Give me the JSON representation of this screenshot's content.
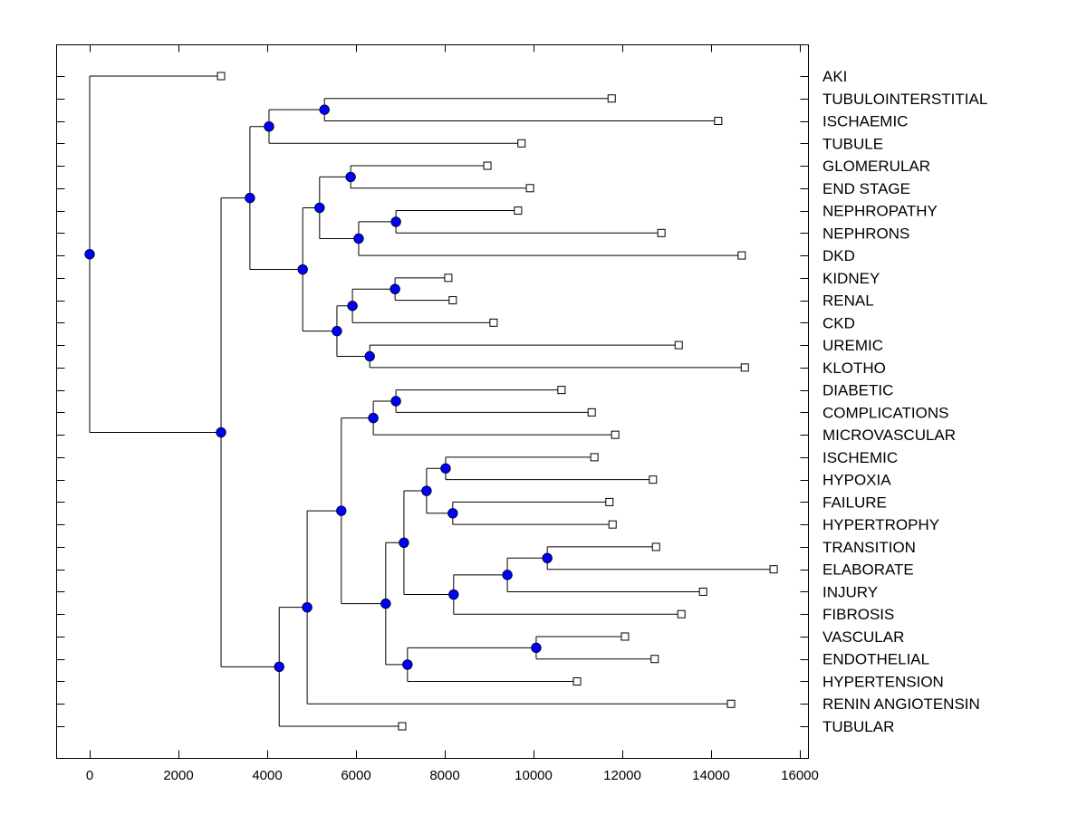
{
  "chart_data": {
    "type": "dendrogram",
    "title": "",
    "xlabel": "",
    "ylabel": "",
    "xlim": [
      -750,
      16200
    ],
    "xticks": [
      0,
      2000,
      4000,
      6000,
      8000,
      10000,
      12000,
      14000,
      16000
    ],
    "xtick_labels": [
      "0",
      "2000",
      "4000",
      "6000",
      "8000",
      "10000",
      "12000",
      "14000",
      "16000"
    ],
    "grid": false,
    "colors": {
      "node_fill": "#0000ff",
      "node_stroke": "#000033",
      "leaf_fill": "#ffffff",
      "line": "#000000"
    },
    "leaves": [
      {
        "label": "AKI",
        "value": 2960
      },
      {
        "label": "TUBULOINTERSTITIAL",
        "value": 11760
      },
      {
        "label": "ISCHAEMIC",
        "value": 14160
      },
      {
        "label": "TUBULE",
        "value": 9730
      },
      {
        "label": "GLOMERULAR",
        "value": 8960
      },
      {
        "label": "END STAGE",
        "value": 9920
      },
      {
        "label": "NEPHROPATHY",
        "value": 9650
      },
      {
        "label": "NEPHRONS",
        "value": 12880
      },
      {
        "label": "DKD",
        "value": 14690
      },
      {
        "label": "KIDNEY",
        "value": 8080
      },
      {
        "label": "RENAL",
        "value": 8180
      },
      {
        "label": "CKD",
        "value": 9100
      },
      {
        "label": "UREMIC",
        "value": 13270
      },
      {
        "label": "KLOTHO",
        "value": 14760
      },
      {
        "label": "DIABETIC",
        "value": 10630
      },
      {
        "label": "COMPLICATIONS",
        "value": 11310
      },
      {
        "label": "MICROVASCULAR",
        "value": 11840
      },
      {
        "label": "ISCHEMIC",
        "value": 11370
      },
      {
        "label": "HYPOXIA",
        "value": 12690
      },
      {
        "label": "FAILURE",
        "value": 11710
      },
      {
        "label": "HYPERTROPHY",
        "value": 11780
      },
      {
        "label": "TRANSITION",
        "value": 12760
      },
      {
        "label": "ELABORATE",
        "value": 15410
      },
      {
        "label": "INJURY",
        "value": 13820
      },
      {
        "label": "FIBROSIS",
        "value": 13330
      },
      {
        "label": "VASCULAR",
        "value": 12060
      },
      {
        "label": "ENDOTHELIAL",
        "value": 12730
      },
      {
        "label": "HYPERTENSION",
        "value": 10980
      },
      {
        "label": "RENIN ANGIOTENSIN",
        "value": 14450
      },
      {
        "label": "TUBULAR",
        "value": 7040
      }
    ],
    "tree": {
      "value": 0,
      "children": [
        {
          "leaf": 0
        },
        {
          "value": 2960,
          "children": [
            {
              "value": 3610,
              "children": [
                {
                  "value": 4040,
                  "children": [
                    {
                      "value": 5290,
                      "children": [
                        {
                          "leaf": 1
                        },
                        {
                          "leaf": 2
                        }
                      ]
                    },
                    {
                      "leaf": 3
                    }
                  ]
                },
                {
                  "value": 4800,
                  "children": [
                    {
                      "value": 5180,
                      "children": [
                        {
                          "value": 5880,
                          "children": [
                            {
                              "leaf": 4
                            },
                            {
                              "leaf": 5
                            }
                          ]
                        },
                        {
                          "value": 6060,
                          "children": [
                            {
                              "value": 6900,
                              "children": [
                                {
                                  "leaf": 6
                                },
                                {
                                  "leaf": 7
                                }
                              ]
                            },
                            {
                              "leaf": 8
                            }
                          ]
                        }
                      ]
                    },
                    {
                      "value": 5570,
                      "children": [
                        {
                          "value": 5920,
                          "children": [
                            {
                              "value": 6880,
                              "children": [
                                {
                                  "leaf": 9
                                },
                                {
                                  "leaf": 10
                                }
                              ]
                            },
                            {
                              "leaf": 11
                            }
                          ]
                        },
                        {
                          "value": 6310,
                          "children": [
                            {
                              "leaf": 12
                            },
                            {
                              "leaf": 13
                            }
                          ]
                        }
                      ]
                    }
                  ]
                }
              ]
            },
            {
              "value": 4270,
              "children": [
                {
                  "value": 4900,
                  "children": [
                    {
                      "value": 5670,
                      "children": [
                        {
                          "value": 6390,
                          "children": [
                            {
                              "value": 6900,
                              "children": [
                                {
                                  "leaf": 14
                                },
                                {
                                  "leaf": 15
                                }
                              ]
                            },
                            {
                              "leaf": 16
                            }
                          ]
                        },
                        {
                          "value": 6670,
                          "children": [
                            {
                              "value": 7080,
                              "children": [
                                {
                                  "value": 7590,
                                  "children": [
                                    {
                                      "value": 8020,
                                      "children": [
                                        {
                                          "leaf": 17
                                        },
                                        {
                                          "leaf": 18
                                        }
                                      ]
                                    },
                                    {
                                      "value": 8180,
                                      "children": [
                                        {
                                          "leaf": 19
                                        },
                                        {
                                          "leaf": 20
                                        }
                                      ]
                                    }
                                  ]
                                },
                                {
                                  "value": 8200,
                                  "children": [
                                    {
                                      "value": 9410,
                                      "children": [
                                        {
                                          "value": 10310,
                                          "children": [
                                            {
                                              "leaf": 21
                                            },
                                            {
                                              "leaf": 22
                                            }
                                          ]
                                        },
                                        {
                                          "leaf": 23
                                        }
                                      ]
                                    },
                                    {
                                      "leaf": 24
                                    }
                                  ]
                                }
                              ]
                            },
                            {
                              "value": 7160,
                              "children": [
                                {
                                  "value": 10060,
                                  "children": [
                                    {
                                      "leaf": 25
                                    },
                                    {
                                      "leaf": 26
                                    }
                                  ]
                                },
                                {
                                  "leaf": 27
                                }
                              ]
                            }
                          ]
                        }
                      ]
                    },
                    {
                      "leaf": 28
                    }
                  ]
                },
                {
                  "leaf": 29
                }
              ]
            }
          ]
        }
      ]
    }
  }
}
